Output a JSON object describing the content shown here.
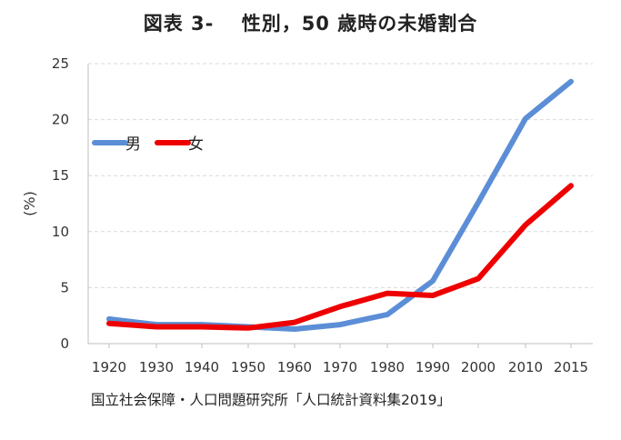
{
  "chart_data": {
    "type": "line",
    "title": "図表 3-　 性別，50 歳時の未婚割合",
    "ylabel": "(%)",
    "xlabel": "",
    "ylim": [
      0,
      25
    ],
    "yticks": [
      0,
      5,
      10,
      15,
      20,
      25
    ],
    "grid": true,
    "legend_position": "top-left",
    "categories": [
      "1920",
      "1930",
      "1940",
      "1950",
      "1960",
      "1970",
      "1980",
      "1990",
      "2000",
      "2010",
      "2015"
    ],
    "series": [
      {
        "name": "男",
        "color": "#5B8ED6",
        "values": [
          2.2,
          1.7,
          1.7,
          1.5,
          1.3,
          1.7,
          2.6,
          5.6,
          12.6,
          20.1,
          23.4
        ]
      },
      {
        "name": "女",
        "color": "#EE0000",
        "values": [
          1.8,
          1.5,
          1.5,
          1.4,
          1.9,
          3.3,
          4.5,
          4.3,
          5.8,
          10.6,
          14.1
        ]
      }
    ]
  },
  "source": "国立社会保障・人口問題研究所「人口統計資料集2019」"
}
